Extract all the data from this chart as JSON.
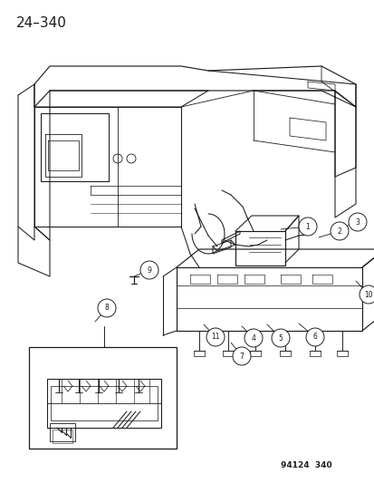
{
  "background_color": "#ffffff",
  "line_color": "#1a1a1a",
  "title_text": "24–340",
  "title_fontsize": 11,
  "fig_num_text": "94124  340",
  "fig_num_fontsize": 6.5,
  "lw": 0.75
}
